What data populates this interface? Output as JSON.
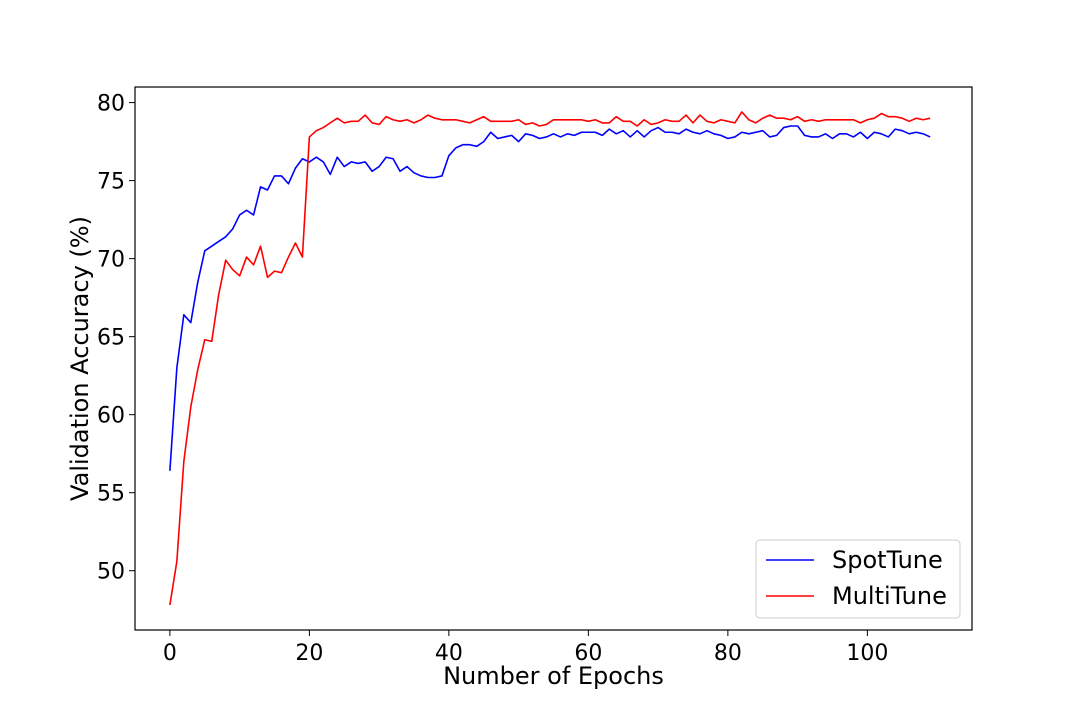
{
  "chart_data": {
    "type": "line",
    "title": "",
    "xlabel": "Number of Epochs",
    "ylabel": "Validation Accuracy (%)",
    "xlim": [
      -5,
      115
    ],
    "ylim": [
      46.2,
      81.0
    ],
    "xticks": [
      0,
      20,
      40,
      60,
      80,
      100
    ],
    "yticks": [
      50,
      55,
      60,
      65,
      70,
      75,
      80
    ],
    "grid": false,
    "legend_position": "lower-right",
    "series": [
      {
        "name": "SpotTune",
        "color": "#0000ff",
        "x": [
          0,
          1,
          2,
          3,
          4,
          5,
          6,
          7,
          8,
          9,
          10,
          11,
          12,
          13,
          14,
          15,
          16,
          17,
          18,
          19,
          20,
          21,
          22,
          23,
          24,
          25,
          26,
          27,
          28,
          29,
          30,
          31,
          32,
          33,
          34,
          35,
          36,
          37,
          38,
          39,
          40,
          41,
          42,
          43,
          44,
          45,
          46,
          47,
          48,
          49,
          50,
          51,
          52,
          53,
          54,
          55,
          56,
          57,
          58,
          59,
          60,
          61,
          62,
          63,
          64,
          65,
          66,
          67,
          68,
          69,
          70,
          71,
          72,
          73,
          74,
          75,
          76,
          77,
          78,
          79,
          80,
          81,
          82,
          83,
          84,
          85,
          86,
          87,
          88,
          89,
          90,
          91,
          92,
          93,
          94,
          95,
          96,
          97,
          98,
          99,
          100,
          101,
          102,
          103,
          104,
          105,
          106,
          107,
          108,
          109
        ],
        "y": [
          56.4,
          63.0,
          66.4,
          65.9,
          68.5,
          70.5,
          70.8,
          71.1,
          71.4,
          71.9,
          72.8,
          73.1,
          72.8,
          74.6,
          74.4,
          75.3,
          75.3,
          74.8,
          75.8,
          76.4,
          76.2,
          76.5,
          76.2,
          75.4,
          76.5,
          75.9,
          76.2,
          76.1,
          76.2,
          75.6,
          75.9,
          76.5,
          76.4,
          75.6,
          75.9,
          75.5,
          75.3,
          75.2,
          75.2,
          75.3,
          76.6,
          77.1,
          77.3,
          77.3,
          77.2,
          77.5,
          78.1,
          77.7,
          77.8,
          77.9,
          77.5,
          78.0,
          77.9,
          77.7,
          77.8,
          78.0,
          77.8,
          78.0,
          77.9,
          78.1,
          78.1,
          78.1,
          77.9,
          78.3,
          78.0,
          78.2,
          77.8,
          78.2,
          77.8,
          78.2,
          78.4,
          78.1,
          78.1,
          78.0,
          78.3,
          78.1,
          78.0,
          78.2,
          78.0,
          77.9,
          77.7,
          77.8,
          78.1,
          78.0,
          78.1,
          78.2,
          77.8,
          77.9,
          78.4,
          78.5,
          78.5,
          77.9,
          77.8,
          77.8,
          78.0,
          77.7,
          78.0,
          78.0,
          77.8,
          78.1,
          77.7,
          78.1,
          78.0,
          77.8,
          78.3,
          78.2,
          78.0,
          78.1,
          78.0,
          77.8
        ]
      },
      {
        "name": "MultiTune",
        "color": "#ff0000",
        "x": [
          0,
          1,
          2,
          3,
          4,
          5,
          6,
          7,
          8,
          9,
          10,
          11,
          12,
          13,
          14,
          15,
          16,
          17,
          18,
          19,
          20,
          21,
          22,
          23,
          24,
          25,
          26,
          27,
          28,
          29,
          30,
          31,
          32,
          33,
          34,
          35,
          36,
          37,
          38,
          39,
          40,
          41,
          42,
          43,
          44,
          45,
          46,
          47,
          48,
          49,
          50,
          51,
          52,
          53,
          54,
          55,
          56,
          57,
          58,
          59,
          60,
          61,
          62,
          63,
          64,
          65,
          66,
          67,
          68,
          69,
          70,
          71,
          72,
          73,
          74,
          75,
          76,
          77,
          78,
          79,
          80,
          81,
          82,
          83,
          84,
          85,
          86,
          87,
          88,
          89,
          90,
          91,
          92,
          93,
          94,
          95,
          96,
          97,
          98,
          99,
          100,
          101,
          102,
          103,
          104,
          105,
          106,
          107,
          108,
          109
        ],
        "y": [
          47.8,
          50.6,
          57.0,
          60.5,
          62.9,
          64.8,
          64.7,
          67.7,
          69.9,
          69.3,
          68.9,
          70.1,
          69.6,
          70.8,
          68.8,
          69.2,
          69.1,
          70.1,
          71.0,
          70.1,
          77.8,
          78.2,
          78.4,
          78.7,
          79.0,
          78.7,
          78.8,
          78.8,
          79.2,
          78.7,
          78.6,
          79.1,
          78.9,
          78.8,
          78.9,
          78.7,
          78.9,
          79.2,
          79.0,
          78.9,
          78.9,
          78.9,
          78.8,
          78.7,
          78.9,
          79.1,
          78.8,
          78.8,
          78.8,
          78.8,
          78.9,
          78.6,
          78.7,
          78.5,
          78.6,
          78.9,
          78.9,
          78.9,
          78.9,
          78.9,
          78.8,
          78.9,
          78.7,
          78.7,
          79.1,
          78.8,
          78.8,
          78.5,
          78.9,
          78.6,
          78.7,
          78.9,
          78.8,
          78.8,
          79.2,
          78.7,
          79.2,
          78.8,
          78.7,
          78.9,
          78.8,
          78.7,
          79.4,
          78.9,
          78.7,
          79.0,
          79.2,
          79.0,
          79.0,
          78.9,
          79.1,
          78.8,
          78.9,
          78.8,
          78.9,
          78.9,
          78.9,
          78.9,
          78.9,
          78.7,
          78.9,
          79.0,
          79.3,
          79.1,
          79.1,
          79.0,
          78.8,
          79.0,
          78.9,
          79.0
        ]
      }
    ]
  }
}
